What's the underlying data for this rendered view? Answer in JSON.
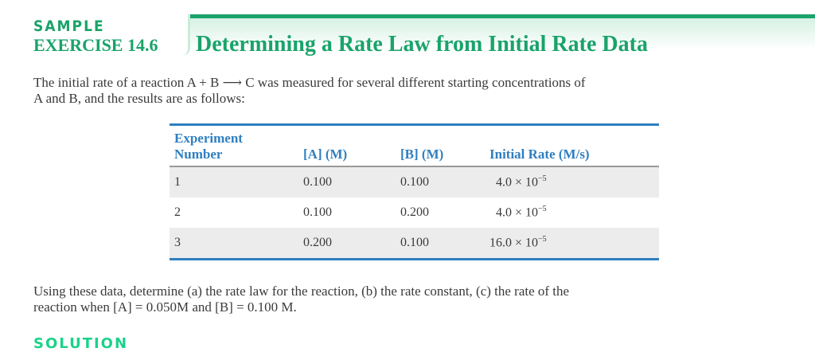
{
  "header": {
    "label": "SAMPLE",
    "exercise": "EXERCISE 14.6",
    "title": "Determining a Rate Law from Initial Rate Data",
    "accent_color": "#1aa36a"
  },
  "intro": {
    "line1": "The initial rate of a reaction A + B ⟶ C was measured for several different starting concentrations of",
    "line2": "A and B, and the results are as follows:"
  },
  "table": {
    "headers": [
      "Experiment Number",
      "[A] (M)",
      "[B] (M)",
      "Initial Rate (M/s)"
    ],
    "rows": [
      {
        "exp": "1",
        "a": "0.100",
        "b": "0.100",
        "rate": "4.0 × 10",
        "exp_sup": "−5"
      },
      {
        "exp": "2",
        "a": "0.100",
        "b": "0.200",
        "rate": "4.0 × 10",
        "exp_sup": "−5"
      },
      {
        "exp": "3",
        "a": "0.200",
        "b": "0.100",
        "rate": "16.0 × 10",
        "exp_sup": "−5"
      }
    ],
    "rule_color": "#2f7fc0"
  },
  "question": {
    "line1": "Using these data, determine (a) the rate law for the reaction, (b) the rate constant, (c) the rate of the",
    "line2": "reaction when [A] = 0.050M and [B] = 0.100 M."
  },
  "next_heading": "SOLUTION"
}
